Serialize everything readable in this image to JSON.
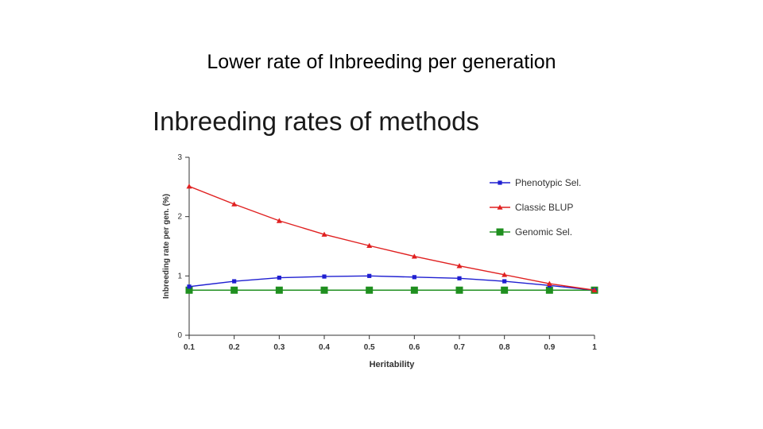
{
  "slide": {
    "title": "Lower rate of Inbreeding per generation"
  },
  "chart_data": {
    "type": "line",
    "title": "Inbreeding rates of methods",
    "xlabel": "Heritability",
    "ylabel": "Inbreeding rate per gen. (%)",
    "x": [
      0.1,
      0.2,
      0.3,
      0.4,
      0.5,
      0.6,
      0.7,
      0.8,
      0.9,
      1
    ],
    "x_tick_labels": [
      "0.1",
      "0.2",
      "0.3",
      "0.4",
      "0.5",
      "0.6",
      "0.7",
      "0.8",
      "0.9",
      "1"
    ],
    "y_ticks": [
      0,
      1,
      2,
      3
    ],
    "y_tick_labels": [
      "0",
      "1",
      "2",
      "3"
    ],
    "xlim": [
      0.1,
      1
    ],
    "ylim": [
      0,
      3
    ],
    "grid": false,
    "legend_position": "top-right",
    "series": [
      {
        "name": "Phenotypic Sel.",
        "color": "#1f1fd1",
        "marker": "square",
        "values": [
          0.82,
          0.91,
          0.97,
          0.99,
          1.0,
          0.98,
          0.96,
          0.91,
          0.84,
          0.76
        ]
      },
      {
        "name": "Classic BLUP",
        "color": "#e02020",
        "marker": "triangle",
        "values": [
          2.51,
          2.21,
          1.93,
          1.7,
          1.51,
          1.33,
          1.17,
          1.02,
          0.87,
          0.76
        ]
      },
      {
        "name": "Genomic Sel.",
        "color": "#1f8f1f",
        "marker": "big-square",
        "values": [
          0.76,
          0.76,
          0.76,
          0.76,
          0.76,
          0.76,
          0.76,
          0.76,
          0.76,
          0.76
        ]
      }
    ]
  }
}
